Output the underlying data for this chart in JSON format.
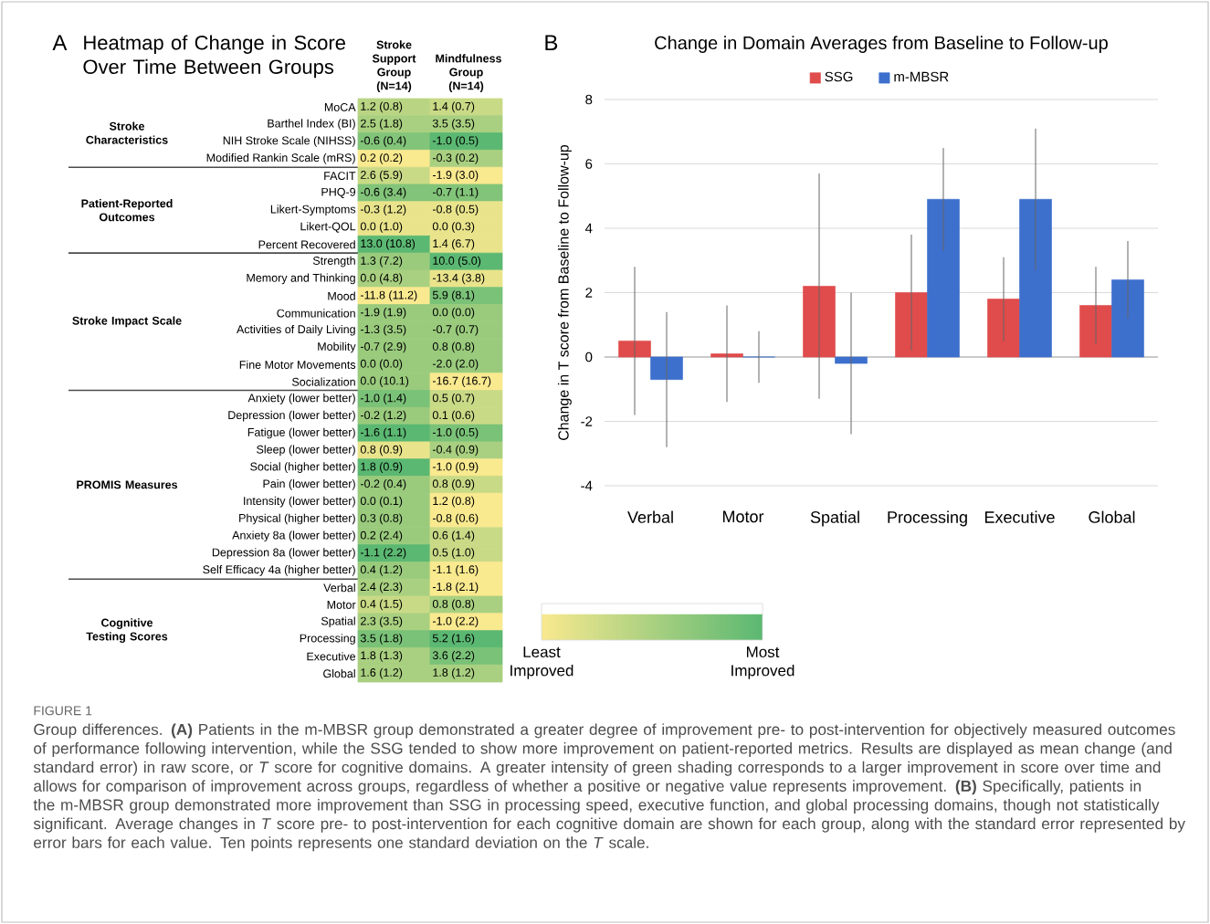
{
  "chart_data": [
    {
      "type": "heatmap",
      "title": "Heatmap of Change in Score Over Time Between Groups",
      "categories": [
        "Stroke Support Group (N=14)",
        "Mindfulness Group (N=14)"
      ],
      "y_categories": [
        "MoCA",
        "Barthel Index (BI)",
        "NIH Stroke Scale (NIHSS)",
        "Modified Rankin Scale (mRS)",
        "FACIT",
        "PHQ-9",
        "Likert-Symptoms",
        "Likert-QOL",
        "Percent Recovered",
        "Strength",
        "Memory and Thinking",
        "Mood",
        "Communication",
        "Activities of Daily Living",
        "Mobility",
        "Fine Motor Movements",
        "Socialization",
        "Anxiety (lower better)",
        "Depression (lower better)",
        "Fatigue (lower better)",
        "Sleep (lower better)",
        "Social (higher better)",
        "Pain (lower better)",
        "Intensity (lower better)",
        "Physical (higher better)",
        "Anxiety 8a (lower better)",
        "Depression 8a (lower better)",
        "Self Efficacy 4a (higher better)",
        "Verbal",
        "Motor",
        "Spatial",
        "Processing",
        "Executive",
        "Global"
      ],
      "cells": [
        [
          0.4,
          0.3
        ],
        [
          0.5,
          0.5
        ],
        [
          0.75,
          1
        ],
        [
          0,
          0.5
        ],
        [
          0.3,
          0
        ],
        [
          0.75,
          0.75
        ],
        [
          0.1,
          0.1
        ],
        [
          0.1,
          0.1
        ],
        [
          1,
          0.1
        ],
        [
          0.6,
          1
        ],
        [
          0.5,
          0.1
        ],
        [
          0,
          0.8
        ],
        [
          0.6,
          0.6
        ],
        [
          0.6,
          0.6
        ],
        [
          0.6,
          0.6
        ],
        [
          0.6,
          0.6
        ],
        [
          0.6,
          0
        ],
        [
          0.8,
          0.3
        ],
        [
          0.6,
          0.3
        ],
        [
          1,
          0.8
        ],
        [
          0.1,
          0.5
        ],
        [
          1,
          0
        ],
        [
          0.6,
          0.3
        ],
        [
          0.6,
          0
        ],
        [
          0.6,
          0
        ],
        [
          0.6,
          0.3
        ],
        [
          1,
          0.3
        ],
        [
          0.6,
          0
        ],
        [
          0.5,
          0
        ],
        [
          0.3,
          0.5
        ],
        [
          0.5,
          0
        ],
        [
          0.8,
          1
        ],
        [
          0.5,
          0.8
        ],
        [
          0.5,
          0.5
        ]
      ],
      "cell_labels": [
        [
          "1.2 (0.8)",
          "1.4 (0.7)"
        ],
        [
          "2.5 (1.8)",
          "3.5 (3.5)"
        ],
        [
          "-0.6 (0.4)",
          "-1.0 (0.5)"
        ],
        [
          "0.2 (0.2)",
          "-0.3 (0.2)"
        ],
        [
          "2.6 (5.9)",
          "-1.9 (3.0)"
        ],
        [
          "-0.6 (3.4)",
          "-0.7 (1.1)"
        ],
        [
          "-0.3 (1.2)",
          "-0.8 (0.5)"
        ],
        [
          "0.0 (1.0)",
          "0.0 (0.3)"
        ],
        [
          "13.0 (10.8)",
          "1.4 (6.7)"
        ],
        [
          "1.3 (7.2)",
          "10.0 (5.0)"
        ],
        [
          "0.0 (4.8)",
          "-13.4 (3.8)"
        ],
        [
          "-11.8 (11.2)",
          "5.9 (8.1)"
        ],
        [
          "-1.9 (1.9)",
          "0.0 (0.0)"
        ],
        [
          "-1.3 (3.5)",
          "-0.7 (0.7)"
        ],
        [
          "-0.7 (2.9)",
          "0.8 (0.8)"
        ],
        [
          "0.0 (0.0)",
          "-2.0 (2.0)"
        ],
        [
          "0.0 (10.1)",
          "-16.7 (16.7)"
        ],
        [
          "-1.0 (1.4)",
          "0.5 (0.7)"
        ],
        [
          "-0.2 (1.2)",
          "0.1 (0.6)"
        ],
        [
          "-1.6 (1.1)",
          "-1.0 (0.5)"
        ],
        [
          "0.8 (0.9)",
          "-0.4 (0.9)"
        ],
        [
          "1.8 (0.9)",
          "-1.0 (0.9)"
        ],
        [
          "-0.2 (0.4)",
          "0.8 (0.9)"
        ],
        [
          "0.0 (0.1)",
          "1.2 (0.8)"
        ],
        [
          "0.3 (0.8)",
          "-0.8 (0.6)"
        ],
        [
          "0.2 (2.4)",
          "0.6 (1.4)"
        ],
        [
          "-1.1 (2.2)",
          "0.5 (1.0)"
        ],
        [
          "0.4 (1.2)",
          "-1.1 (1.6)"
        ],
        [
          "2.4 (2.3)",
          "-1.8 (2.1)"
        ],
        [
          "0.4 (1.5)",
          "0.8 (0.8)"
        ],
        [
          "2.3 (3.5)",
          "-1.0 (2.2)"
        ],
        [
          "3.5 (1.8)",
          "5.2 (1.6)"
        ],
        [
          "1.8 (1.3)",
          "3.6 (2.2)"
        ],
        [
          "1.6 (1.2)",
          "1.8 (1.2)"
        ]
      ],
      "clim": [
        0,
        1
      ],
      "cticks": [
        {
          "value": 0,
          "label": "Least Improved"
        },
        {
          "value": 1,
          "label": "Most Improved"
        }
      ],
      "annotations": [
        "A",
        "Stroke Characteristics",
        "Patient-Reported Outcomes",
        "Stroke Impact Scale",
        "PROMIS Measures",
        "Cognitive Testing Scores"
      ]
    },
    {
      "type": "bar",
      "title": "Change in Domain Averages from Baseline to Follow-up",
      "ylabel": "Change in T score from Baseline to Follow-up",
      "categories": [
        "Verbal",
        "Motor",
        "Spatial",
        "Processing",
        "Executive",
        "Global"
      ],
      "series": [
        {
          "name": "SSG",
          "color": "#e04b4b",
          "values": [
            0.5,
            0.1,
            2.2,
            2.0,
            1.8,
            1.6
          ],
          "errors": [
            2.3,
            1.5,
            3.5,
            1.8,
            1.3,
            1.2
          ]
        },
        {
          "name": "m-MBSR",
          "color": "#3d6fcc",
          "values": [
            -0.7,
            0,
            -0.2,
            4.9,
            4.9,
            2.4
          ],
          "errors": [
            2.1,
            0.8,
            2.2,
            1.6,
            2.2,
            1.2
          ]
        }
      ],
      "ylim": [
        -4,
        8
      ],
      "yticks": [
        -4,
        -2,
        0,
        2,
        4,
        6,
        8
      ],
      "grid": "y",
      "legend": "top",
      "annotations": [
        "B",
        "FIGURE 1",
        "Group differences. **(A)** Patients in the m-MBSR group demonstrated a greater degree of improvement pre- to post-intervention for objectively measured outcomes of performance following intervention, while the SSG tended to show more improvement on patient-reported metrics. Results are displayed as mean change (and standard error) in raw score, or *T* score for cognitive domains. A greater intensity of green shading corresponds to a larger improvement in score over time and allows for comparison of improvement across groups, regardless of whether a positive or negative value represents improvement. **(B)** Specifically, patients in the m-MBSR group demonstrated more improvement than SSG in processing speed, executive function, and global processing domains, though not statistically significant. Average changes in *T* score pre- to post-intervention for each cognitive domain are shown for each group, along with the standard error represented by error bars for each value. Ten points represents one standard deviation on the *T* scale."
      ]
    }
  ]
}
